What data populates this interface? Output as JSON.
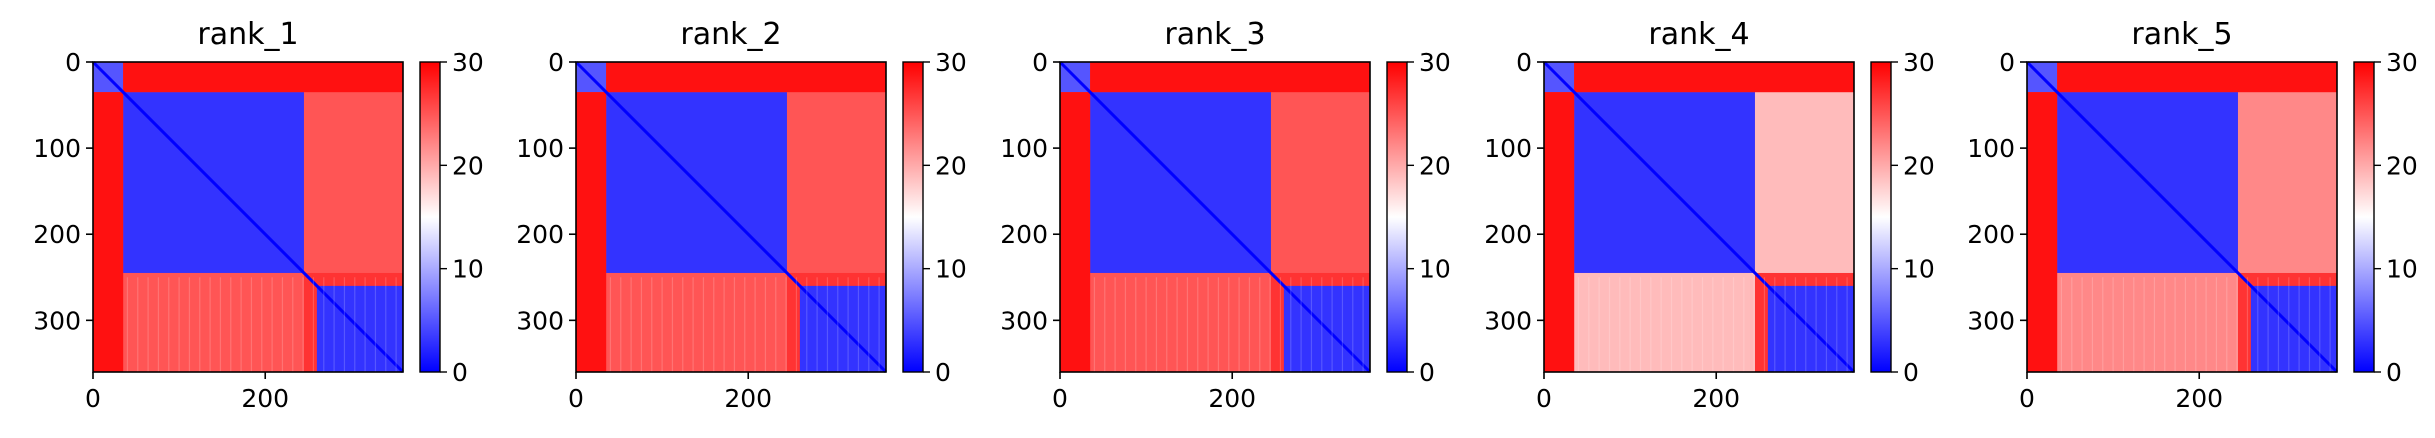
{
  "chart_data": [
    {
      "type": "heatmap",
      "title": "rank_1",
      "n": 360,
      "xlim": [
        0,
        360
      ],
      "ylim": [
        360,
        0
      ],
      "x_ticks": [
        0,
        200
      ],
      "y_ticks": [
        0,
        100,
        200,
        300
      ],
      "colorbar": {
        "range": [
          0,
          30
        ],
        "ticks": [
          0,
          10,
          20,
          30
        ],
        "colormap": [
          "#0000ff",
          "#ffffff",
          "#ff0000"
        ]
      },
      "blocks": [
        {
          "rows": [
            0,
            35
          ],
          "cols": [
            0,
            35
          ],
          "value": 5
        },
        {
          "rows": [
            35,
            245
          ],
          "cols": [
            35,
            245
          ],
          "value": 3
        },
        {
          "rows": [
            35,
            245
          ],
          "cols": [
            245,
            360
          ],
          "value": 25
        },
        {
          "rows": [
            245,
            360
          ],
          "cols": [
            35,
            245
          ],
          "value": 25
        },
        {
          "rows": [
            260,
            360
          ],
          "cols": [
            260,
            360
          ],
          "value": 3
        },
        {
          "rows": [
            0,
            35
          ],
          "cols": [
            35,
            360
          ],
          "value": 29
        },
        {
          "rows": [
            35,
            360
          ],
          "cols": [
            0,
            35
          ],
          "value": 29
        }
      ]
    },
    {
      "type": "heatmap",
      "title": "rank_2",
      "n": 360,
      "xlim": [
        0,
        360
      ],
      "ylim": [
        360,
        0
      ],
      "x_ticks": [
        0,
        200
      ],
      "y_ticks": [
        0,
        100,
        200,
        300
      ],
      "colorbar": {
        "range": [
          0,
          30
        ],
        "ticks": [
          0,
          10,
          20,
          30
        ],
        "colormap": [
          "#0000ff",
          "#ffffff",
          "#ff0000"
        ]
      },
      "blocks": [
        {
          "rows": [
            0,
            35
          ],
          "cols": [
            0,
            35
          ],
          "value": 5
        },
        {
          "rows": [
            35,
            245
          ],
          "cols": [
            35,
            245
          ],
          "value": 3
        },
        {
          "rows": [
            35,
            245
          ],
          "cols": [
            245,
            360
          ],
          "value": 25
        },
        {
          "rows": [
            245,
            360
          ],
          "cols": [
            35,
            245
          ],
          "value": 25
        },
        {
          "rows": [
            260,
            360
          ],
          "cols": [
            260,
            360
          ],
          "value": 3
        },
        {
          "rows": [
            0,
            35
          ],
          "cols": [
            35,
            360
          ],
          "value": 29
        },
        {
          "rows": [
            35,
            360
          ],
          "cols": [
            0,
            35
          ],
          "value": 29
        }
      ]
    },
    {
      "type": "heatmap",
      "title": "rank_3",
      "n": 360,
      "xlim": [
        0,
        360
      ],
      "ylim": [
        360,
        0
      ],
      "x_ticks": [
        0,
        200
      ],
      "y_ticks": [
        0,
        100,
        200,
        300
      ],
      "colorbar": {
        "range": [
          0,
          30
        ],
        "ticks": [
          0,
          10,
          20,
          30
        ],
        "colormap": [
          "#0000ff",
          "#ffffff",
          "#ff0000"
        ]
      },
      "blocks": [
        {
          "rows": [
            0,
            35
          ],
          "cols": [
            0,
            35
          ],
          "value": 5
        },
        {
          "rows": [
            35,
            245
          ],
          "cols": [
            35,
            245
          ],
          "value": 3
        },
        {
          "rows": [
            35,
            245
          ],
          "cols": [
            245,
            360
          ],
          "value": 25
        },
        {
          "rows": [
            245,
            360
          ],
          "cols": [
            35,
            245
          ],
          "value": 25
        },
        {
          "rows": [
            260,
            360
          ],
          "cols": [
            260,
            360
          ],
          "value": 3
        },
        {
          "rows": [
            0,
            35
          ],
          "cols": [
            35,
            360
          ],
          "value": 29
        },
        {
          "rows": [
            35,
            360
          ],
          "cols": [
            0,
            35
          ],
          "value": 29
        }
      ]
    },
    {
      "type": "heatmap",
      "title": "rank_4",
      "n": 360,
      "xlim": [
        0,
        360
      ],
      "ylim": [
        360,
        0
      ],
      "x_ticks": [
        0,
        200
      ],
      "y_ticks": [
        0,
        100,
        200,
        300
      ],
      "colorbar": {
        "range": [
          0,
          30
        ],
        "ticks": [
          0,
          10,
          20,
          30
        ],
        "colormap": [
          "#0000ff",
          "#ffffff",
          "#ff0000"
        ]
      },
      "blocks": [
        {
          "rows": [
            0,
            35
          ],
          "cols": [
            0,
            35
          ],
          "value": 5
        },
        {
          "rows": [
            35,
            245
          ],
          "cols": [
            35,
            245
          ],
          "value": 3
        },
        {
          "rows": [
            35,
            245
          ],
          "cols": [
            245,
            360
          ],
          "value": 19
        },
        {
          "rows": [
            245,
            360
          ],
          "cols": [
            35,
            245
          ],
          "value": 19
        },
        {
          "rows": [
            260,
            360
          ],
          "cols": [
            260,
            360
          ],
          "value": 3
        },
        {
          "rows": [
            0,
            35
          ],
          "cols": [
            35,
            360
          ],
          "value": 29
        },
        {
          "rows": [
            35,
            360
          ],
          "cols": [
            0,
            35
          ],
          "value": 29
        }
      ]
    },
    {
      "type": "heatmap",
      "title": "rank_5",
      "n": 360,
      "xlim": [
        0,
        360
      ],
      "ylim": [
        360,
        0
      ],
      "x_ticks": [
        0,
        200
      ],
      "y_ticks": [
        0,
        100,
        200,
        300
      ],
      "colorbar": {
        "range": [
          0,
          30
        ],
        "ticks": [
          0,
          10,
          20,
          30
        ],
        "colormap": [
          "#0000ff",
          "#ffffff",
          "#ff0000"
        ]
      },
      "blocks": [
        {
          "rows": [
            0,
            35
          ],
          "cols": [
            0,
            35
          ],
          "value": 5
        },
        {
          "rows": [
            35,
            245
          ],
          "cols": [
            35,
            245
          ],
          "value": 3
        },
        {
          "rows": [
            35,
            245
          ],
          "cols": [
            245,
            360
          ],
          "value": 22
        },
        {
          "rows": [
            245,
            360
          ],
          "cols": [
            35,
            245
          ],
          "value": 22
        },
        {
          "rows": [
            260,
            360
          ],
          "cols": [
            260,
            360
          ],
          "value": 3
        },
        {
          "rows": [
            0,
            35
          ],
          "cols": [
            35,
            360
          ],
          "value": 29
        },
        {
          "rows": [
            35,
            360
          ],
          "cols": [
            0,
            35
          ],
          "value": 29
        }
      ]
    }
  ]
}
